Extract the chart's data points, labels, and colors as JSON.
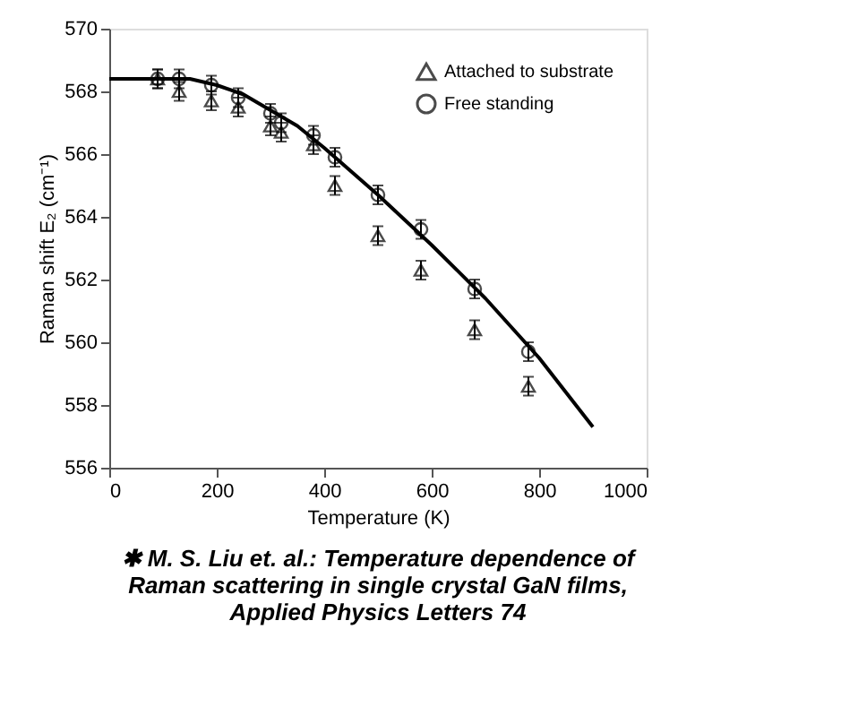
{
  "chart_data": {
    "type": "scatter",
    "xlabel": "Temperature     (K)",
    "ylabel": "Raman shift E₂     (cm⁻¹)",
    "xlim": [
      0,
      1000
    ],
    "xticks": [
      0,
      200,
      400,
      600,
      800,
      {
        "value": 1000,
        "label": "1000"
      }
    ],
    "ylim": [
      556,
      570
    ],
    "yticks": [
      556,
      558,
      560,
      562,
      564,
      566,
      568,
      570
    ],
    "grid": false,
    "legend": "top right",
    "series": [
      {
        "name": "Attached to substrate",
        "marker": "triangle",
        "color": "#000000",
        "x": [
          90,
          130,
          190,
          240,
          300,
          320,
          380,
          420,
          500,
          580,
          680,
          780
        ],
        "values": [
          568.4,
          568.0,
          567.7,
          567.5,
          566.9,
          566.7,
          566.3,
          565.0,
          563.4,
          562.3,
          560.4,
          558.6
        ],
        "errors": [
          0.3,
          0.3,
          0.3,
          0.3,
          0.3,
          0.3,
          0.3,
          0.3,
          0.3,
          0.3,
          0.3,
          0.3
        ]
      },
      {
        "name": "Free standing",
        "marker": "circle",
        "color": "#000000",
        "x": [
          90,
          130,
          190,
          240,
          300,
          320,
          380,
          420,
          500,
          580,
          680,
          780
        ],
        "values": [
          568.4,
          568.4,
          568.2,
          567.8,
          567.3,
          567.0,
          566.6,
          565.9,
          564.7,
          563.6,
          561.7,
          559.7
        ],
        "errors": [
          0.3,
          0.3,
          0.3,
          0.3,
          0.3,
          0.3,
          0.3,
          0.3,
          0.3,
          0.3,
          0.3,
          0.3
        ]
      },
      {
        "type": "line",
        "marker": "none",
        "line_style": "solid",
        "color": "#000000",
        "x": [
          0,
          150,
          200,
          250,
          300,
          350,
          400,
          500,
          600,
          700,
          800,
          900
        ],
        "values": [
          568.4,
          568.4,
          568.2,
          567.9,
          567.4,
          566.9,
          566.2,
          564.7,
          563.1,
          561.4,
          559.5,
          557.3
        ]
      }
    ],
    "annotations": [
      "✱ M. S. Liu et. al.: Temperature dependence of",
      "Raman scattering in single crystal GaN films,",
      "Applied Physics Letters 74"
    ]
  }
}
